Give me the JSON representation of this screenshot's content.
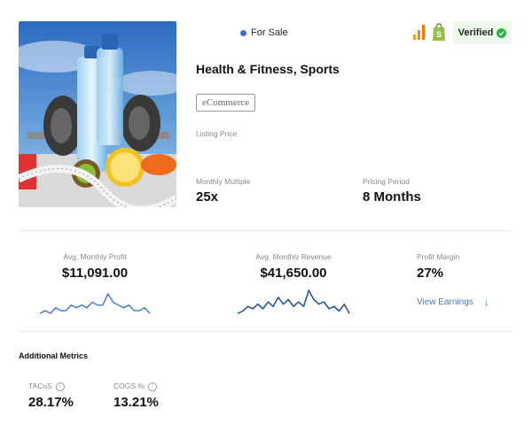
{
  "listing": {
    "status": "For Sale",
    "verified_label": "Verified",
    "title": "Health & Fitness, Sports",
    "category_tag": "eCommerce",
    "listing_price_label": "Listing Price"
  },
  "stats_top": {
    "multiple_label": "Monthly Multiple",
    "multiple_value": "25x",
    "period_label": "Pricing Period",
    "period_value": "8 Months"
  },
  "earnings": {
    "profit_label": "Avg. Monthly Profit",
    "profit_value": "$11,091.00",
    "profit_spark": [
      2,
      3,
      2,
      4,
      3,
      3,
      5,
      4,
      5,
      4,
      6,
      5,
      5,
      9,
      6,
      5,
      4,
      5,
      3,
      3,
      4,
      2
    ],
    "revenue_label": "Avg. Monthly Revenue",
    "revenue_value": "$41,650.00",
    "revenue_spark": [
      2,
      3,
      5,
      4,
      6,
      4,
      7,
      5,
      9,
      6,
      8,
      5,
      7,
      5,
      12,
      8,
      6,
      7,
      4,
      5,
      3,
      6,
      2
    ],
    "margin_label": "Profit Margin",
    "margin_value": "27%",
    "view_earnings_label": "View Earnings"
  },
  "additional": {
    "title": "Additional Metrics",
    "tacos_label": "TACoS",
    "tacos_value": "28.17%",
    "cogs_label": "COGS %",
    "cogs_value": "13.21%"
  },
  "colors": {
    "status_dot": "#3b6fd0",
    "verified_bg": "#eef7ec",
    "verified_check": "#2fb14a",
    "profit_line": "#4a7fc8",
    "revenue_line": "#1f4f96",
    "link": "#4a79b8"
  },
  "icons": [
    "bar-chart-icon",
    "shopify-bag-icon",
    "check-circle-icon",
    "info-icon",
    "arrow-down-icon"
  ]
}
